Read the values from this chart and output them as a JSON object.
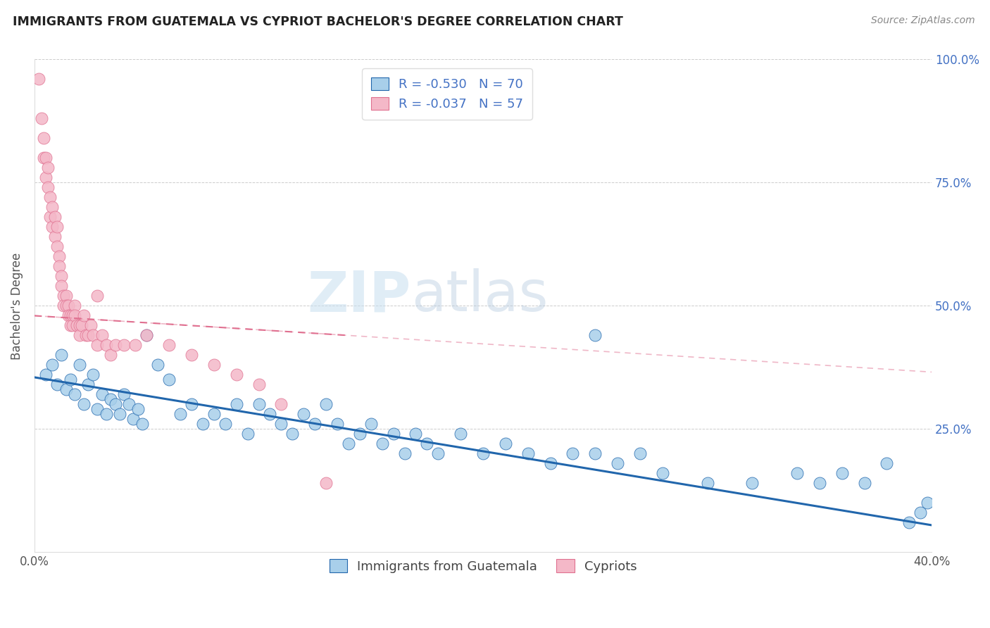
{
  "title": "IMMIGRANTS FROM GUATEMALA VS CYPRIOT BACHELOR'S DEGREE CORRELATION CHART",
  "source": "Source: ZipAtlas.com",
  "ylabel": "Bachelor's Degree",
  "xlim": [
    0.0,
    0.4
  ],
  "ylim": [
    0.0,
    1.0
  ],
  "legend_label1": "R = -0.530   N = 70",
  "legend_label2": "R = -0.037   N = 57",
  "legend_bottom1": "Immigrants from Guatemala",
  "legend_bottom2": "Cypriots",
  "color_blue": "#A8CFEA",
  "color_pink": "#F4B8C8",
  "color_blue_line": "#2166AC",
  "color_pink_line": "#E07090",
  "watermark_zip": "ZIP",
  "watermark_atlas": "atlas",
  "blue_scatter_x": [
    0.005,
    0.008,
    0.01,
    0.012,
    0.014,
    0.016,
    0.018,
    0.02,
    0.022,
    0.024,
    0.026,
    0.028,
    0.03,
    0.032,
    0.034,
    0.036,
    0.038,
    0.04,
    0.042,
    0.044,
    0.046,
    0.048,
    0.05,
    0.055,
    0.06,
    0.065,
    0.07,
    0.075,
    0.08,
    0.085,
    0.09,
    0.095,
    0.1,
    0.105,
    0.11,
    0.115,
    0.12,
    0.125,
    0.13,
    0.135,
    0.14,
    0.145,
    0.15,
    0.155,
    0.16,
    0.165,
    0.17,
    0.175,
    0.18,
    0.19,
    0.2,
    0.21,
    0.22,
    0.23,
    0.24,
    0.25,
    0.26,
    0.27,
    0.28,
    0.3,
    0.32,
    0.34,
    0.35,
    0.36,
    0.37,
    0.38,
    0.39,
    0.395,
    0.398,
    0.25
  ],
  "blue_scatter_y": [
    0.36,
    0.38,
    0.34,
    0.4,
    0.33,
    0.35,
    0.32,
    0.38,
    0.3,
    0.34,
    0.36,
    0.29,
    0.32,
    0.28,
    0.31,
    0.3,
    0.28,
    0.32,
    0.3,
    0.27,
    0.29,
    0.26,
    0.44,
    0.38,
    0.35,
    0.28,
    0.3,
    0.26,
    0.28,
    0.26,
    0.3,
    0.24,
    0.3,
    0.28,
    0.26,
    0.24,
    0.28,
    0.26,
    0.3,
    0.26,
    0.22,
    0.24,
    0.26,
    0.22,
    0.24,
    0.2,
    0.24,
    0.22,
    0.2,
    0.24,
    0.2,
    0.22,
    0.2,
    0.18,
    0.2,
    0.2,
    0.18,
    0.2,
    0.16,
    0.14,
    0.14,
    0.16,
    0.14,
    0.16,
    0.14,
    0.18,
    0.06,
    0.08,
    0.1,
    0.44
  ],
  "pink_scatter_x": [
    0.002,
    0.003,
    0.004,
    0.004,
    0.005,
    0.005,
    0.006,
    0.006,
    0.007,
    0.007,
    0.008,
    0.008,
    0.009,
    0.009,
    0.01,
    0.01,
    0.011,
    0.011,
    0.012,
    0.012,
    0.013,
    0.013,
    0.014,
    0.014,
    0.015,
    0.015,
    0.016,
    0.016,
    0.017,
    0.017,
    0.018,
    0.018,
    0.019,
    0.02,
    0.02,
    0.021,
    0.022,
    0.023,
    0.024,
    0.025,
    0.026,
    0.028,
    0.03,
    0.032,
    0.034,
    0.036,
    0.04,
    0.045,
    0.05,
    0.06,
    0.07,
    0.08,
    0.09,
    0.1,
    0.11,
    0.13,
    0.028
  ],
  "pink_scatter_y": [
    0.96,
    0.88,
    0.84,
    0.8,
    0.8,
    0.76,
    0.78,
    0.74,
    0.72,
    0.68,
    0.7,
    0.66,
    0.68,
    0.64,
    0.66,
    0.62,
    0.6,
    0.58,
    0.56,
    0.54,
    0.52,
    0.5,
    0.52,
    0.5,
    0.5,
    0.48,
    0.48,
    0.46,
    0.48,
    0.46,
    0.5,
    0.48,
    0.46,
    0.46,
    0.44,
    0.46,
    0.48,
    0.44,
    0.44,
    0.46,
    0.44,
    0.42,
    0.44,
    0.42,
    0.4,
    0.42,
    0.42,
    0.42,
    0.44,
    0.42,
    0.4,
    0.38,
    0.36,
    0.34,
    0.3,
    0.14,
    0.52
  ],
  "blue_trend_x0": 0.0,
  "blue_trend_x1": 0.4,
  "blue_trend_y0": 0.355,
  "blue_trend_y1": 0.055,
  "pink_trend_x0": 0.0,
  "pink_trend_x1": 0.14,
  "pink_trend_y0": 0.48,
  "pink_trend_y1": 0.44
}
